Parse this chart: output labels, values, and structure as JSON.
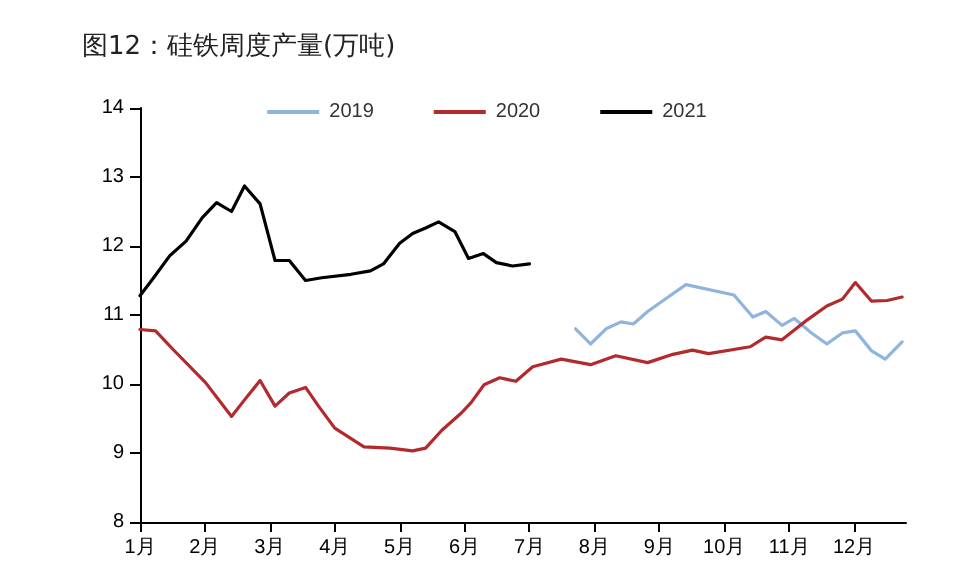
{
  "chart_data": {
    "type": "line",
    "title": "图12：硅铁周度产量(万吨)",
    "legend": "top",
    "grid": false,
    "marker": "none",
    "line_style": "solid",
    "xlim": [
      1,
      12.8
    ],
    "xticks": [
      {
        "value": 1,
        "label": "1月"
      },
      {
        "value": 2,
        "label": "2月"
      },
      {
        "value": 3,
        "label": "3月"
      },
      {
        "value": 4,
        "label": "4月"
      },
      {
        "value": 5,
        "label": "5月"
      },
      {
        "value": 6,
        "label": "6月"
      },
      {
        "value": 7,
        "label": "7月"
      },
      {
        "value": 8,
        "label": "8月"
      },
      {
        "value": 9,
        "label": "9月"
      },
      {
        "value": 10,
        "label": "10月"
      },
      {
        "value": 11,
        "label": "11月"
      },
      {
        "value": 12,
        "label": "12月"
      }
    ],
    "ylim": [
      8,
      14
    ],
    "yticks": [
      8,
      9,
      10,
      11,
      12,
      13,
      14
    ],
    "series": [
      {
        "name": "2019",
        "color": "#8fb4de",
        "x": [
          7.71,
          7.94,
          8.18,
          8.41,
          8.6,
          8.82,
          9.12,
          9.41,
          10.15,
          10.44,
          10.64,
          10.89,
          11.08,
          11.33,
          11.58,
          11.82,
          12.02,
          12.27,
          12.48,
          12.74
        ],
        "values": [
          10.8,
          10.58,
          10.8,
          10.9,
          10.87,
          11.05,
          11.25,
          11.44,
          11.29,
          10.97,
          11.05,
          10.85,
          10.95,
          10.75,
          10.58,
          10.74,
          10.77,
          10.48,
          10.36,
          10.61
        ]
      },
      {
        "name": "2020",
        "color": "#b22a2e",
        "x": [
          1,
          1.24,
          1.51,
          2.01,
          2.41,
          2.61,
          2.85,
          3.08,
          3.3,
          3.55,
          3.75,
          4.0,
          4.45,
          4.85,
          5.2,
          5.4,
          5.65,
          5.95,
          6.1,
          6.3,
          6.54,
          6.79,
          7.05,
          7.49,
          7.94,
          8.33,
          8.82,
          9.21,
          9.51,
          9.76,
          10.4,
          10.64,
          10.89,
          11.28,
          11.58,
          11.82,
          12.02,
          12.27,
          12.51,
          12.74
        ],
        "values": [
          10.79,
          10.77,
          10.5,
          10.02,
          9.53,
          9.77,
          10.05,
          9.68,
          9.87,
          9.95,
          9.68,
          9.36,
          9.09,
          9.07,
          9.03,
          9.07,
          9.33,
          9.58,
          9.73,
          9.99,
          10.09,
          10.04,
          10.25,
          10.36,
          10.28,
          10.41,
          10.31,
          10.43,
          10.49,
          10.44,
          10.54,
          10.68,
          10.64,
          10.93,
          11.13,
          11.23,
          11.47,
          11.2,
          11.21,
          11.26
        ]
      },
      {
        "name": "2021",
        "color": "#000000",
        "x": [
          1,
          1.21,
          1.46,
          1.71,
          1.96,
          2.18,
          2.41,
          2.61,
          2.85,
          3.08,
          3.3,
          3.55,
          3.8,
          4.25,
          4.55,
          4.75,
          5.0,
          5.2,
          5.4,
          5.6,
          5.85,
          6.06,
          6.29,
          6.49,
          6.74,
          7.0
        ],
        "values": [
          11.28,
          11.54,
          11.86,
          12.07,
          12.41,
          12.63,
          12.5,
          12.87,
          12.61,
          11.79,
          11.79,
          11.5,
          11.54,
          11.59,
          11.64,
          11.74,
          12.04,
          12.18,
          12.26,
          12.35,
          12.21,
          11.82,
          11.89,
          11.76,
          11.71,
          11.74
        ]
      }
    ]
  }
}
